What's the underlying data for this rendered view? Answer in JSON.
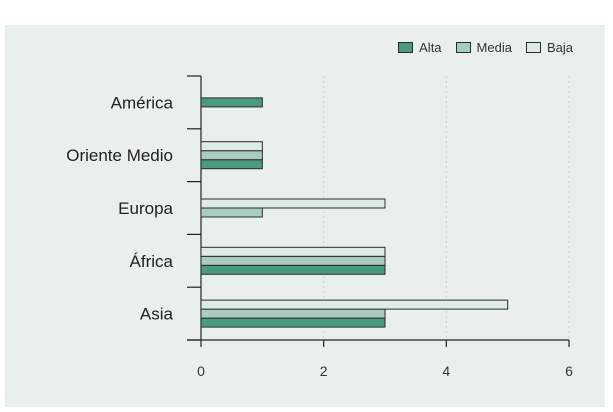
{
  "chart_data": {
    "type": "bar",
    "orientation": "horizontal",
    "categories": [
      "Asia",
      "África",
      "Europa",
      "Oriente Medio",
      "América"
    ],
    "series": [
      {
        "name": "Alta",
        "color": "#4a9a80",
        "values": [
          3,
          3,
          0,
          1,
          1
        ]
      },
      {
        "name": "Media",
        "color": "#a8ccc0",
        "values": [
          3,
          3,
          1,
          1,
          0
        ]
      },
      {
        "name": "Baja",
        "color": "#dcebe5",
        "values": [
          5,
          3,
          3,
          1,
          0
        ]
      }
    ],
    "xlim": [
      0,
      6
    ],
    "xticks": [
      0,
      2,
      4,
      6
    ],
    "grid": "vertical-dashed",
    "legend_position": "top-right",
    "title": "",
    "xlabel": "",
    "ylabel": ""
  }
}
